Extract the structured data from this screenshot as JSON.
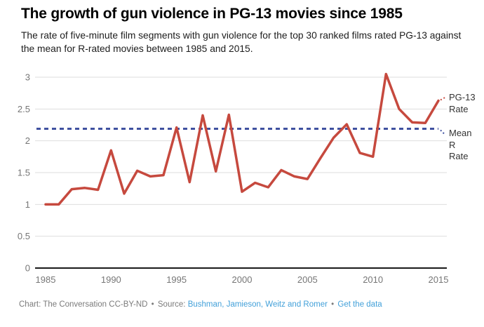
{
  "header": {
    "title": "The growth of gun violence in PG-13 movies since 1985",
    "subtitle": "The rate of five-minute film segments with gun violence for the top 30 ranked films rated PG-13 against the mean for R-rated movies between 1985 and 2015."
  },
  "chart_data": {
    "type": "line",
    "title": "The growth of gun violence in PG-13 movies since 1985",
    "x": [
      1985,
      1986,
      1987,
      1988,
      1989,
      1990,
      1991,
      1992,
      1993,
      1994,
      1995,
      1996,
      1997,
      1998,
      1999,
      2000,
      2001,
      2002,
      2003,
      2004,
      2005,
      2006,
      2007,
      2008,
      2009,
      2010,
      2011,
      2012,
      2013,
      2014,
      2015
    ],
    "series": [
      {
        "name": "PG-13 Rate",
        "style": "solid",
        "color": "#c6493e",
        "values": [
          1.0,
          1.0,
          1.24,
          1.26,
          1.23,
          1.85,
          1.17,
          1.53,
          1.44,
          1.46,
          2.21,
          1.35,
          2.4,
          1.52,
          2.41,
          1.2,
          1.34,
          1.27,
          1.54,
          1.44,
          1.4,
          1.73,
          2.05,
          2.26,
          1.81,
          1.75,
          3.05,
          2.5,
          2.29,
          2.28,
          2.63
        ]
      },
      {
        "name": "Mean R Rate",
        "style": "dashed",
        "color": "#3f51a0",
        "constant_value": 2.19
      }
    ],
    "xlabel": "",
    "ylabel": "",
    "xlim": [
      1985,
      2015
    ],
    "ylim": [
      0,
      3
    ],
    "xticks": [
      1985,
      1990,
      1995,
      2000,
      2005,
      2010,
      2015
    ],
    "yticks": [
      0,
      0.5,
      1,
      1.5,
      2,
      2.5,
      3
    ],
    "grid": true,
    "legend_position": "right-end-labels"
  },
  "footer": {
    "credit": "Chart: The Conversation CC-BY-ND",
    "separator": "•",
    "source_label": "Source:",
    "source_link_text": "Bushman, Jamieson, Weitz and Romer",
    "get_data_link_text": "Get the data"
  },
  "colors": {
    "pg13_line": "#c6493e",
    "mean_r_line": "#3f51a0",
    "link": "#42a0d9",
    "axis_text": "#767676",
    "gridline": "#dedede",
    "axis_line": "#1a1a1a",
    "end_label_text": "#333333"
  }
}
